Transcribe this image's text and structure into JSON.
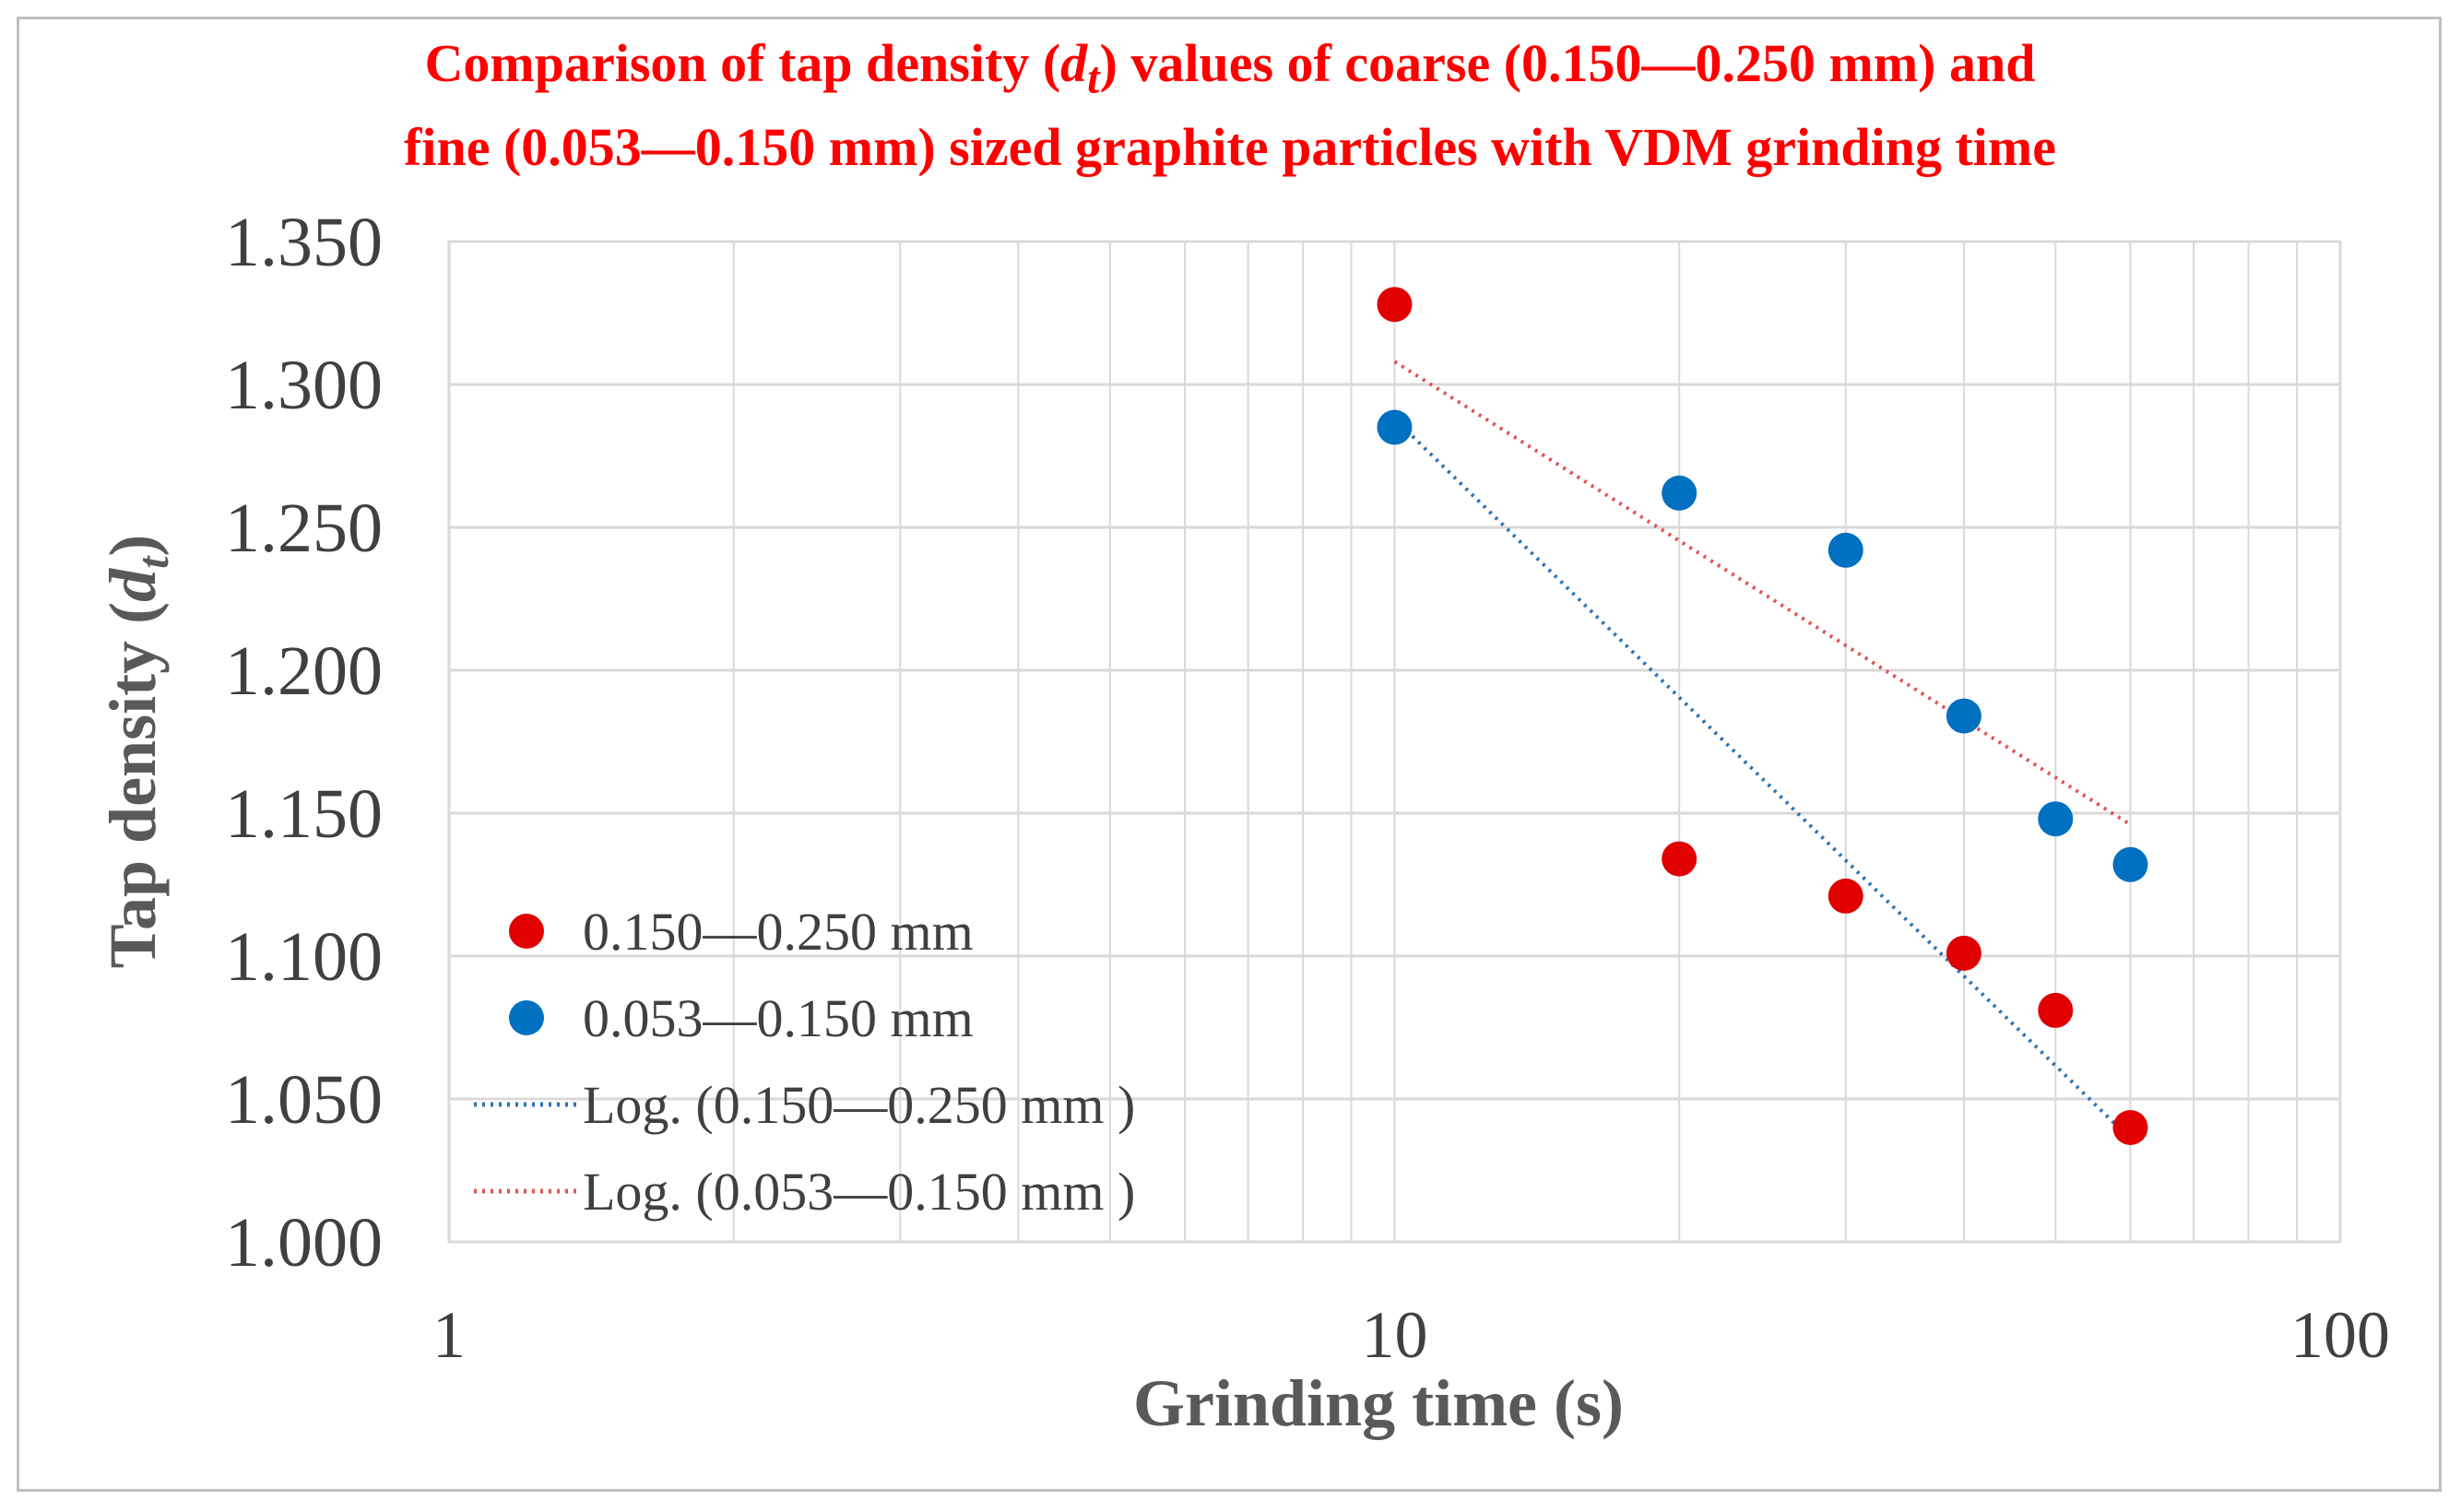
{
  "chart_data": {
    "type": "scatter",
    "title_line1_a": "Comparison of  tap density (",
    "title_symbol": "d",
    "title_subscript": "t",
    "title_line1_b": ") values of coarse (0.150—0.250 mm) and",
    "title_line2": "fine (0.053—0.150 mm) sized graphite particles with VDM grinding time",
    "xlabel": "Grinding time (s)",
    "ylabel_prefix": "Tap density (",
    "ylabel_symbol": "d",
    "ylabel_subscript": "t",
    "ylabel_suffix": ")",
    "x_scale": "log",
    "xlim": [
      1,
      100
    ],
    "ylim": [
      1.0,
      1.35
    ],
    "y_ticks": [
      "1.000",
      "1.050",
      "1.100",
      "1.150",
      "1.200",
      "1.250",
      "1.300",
      "1.350"
    ],
    "x_ticks": [
      "1",
      "10",
      "100"
    ],
    "grid": true,
    "legend_position": "left",
    "series": [
      {
        "name": "0.150—0.250 mm",
        "kind": "marker",
        "color": "#e00000",
        "x": [
          10,
          20,
          30,
          40,
          50,
          60
        ],
        "y": [
          1.328,
          1.134,
          1.121,
          1.101,
          1.081,
          1.04
        ]
      },
      {
        "name": "0.053—0.150 mm",
        "kind": "marker",
        "color": "#0070c0",
        "x": [
          10,
          20,
          30,
          40,
          50,
          60
        ],
        "y": [
          1.285,
          1.262,
          1.242,
          1.184,
          1.148,
          1.132
        ]
      },
      {
        "name": "Log. (0.150—0.250 mm )",
        "kind": "trendline",
        "color": "#2e75b6",
        "x": [
          10,
          60
        ],
        "y": [
          1.288,
          1.036
        ]
      },
      {
        "name": "Log. (0.053—0.150 mm )",
        "kind": "trendline",
        "color": "#e05555",
        "x": [
          10,
          60
        ],
        "y": [
          1.308,
          1.146
        ]
      }
    ]
  }
}
